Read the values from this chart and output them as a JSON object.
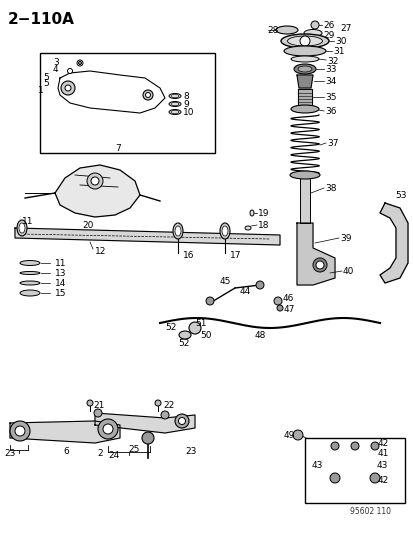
{
  "title": "2−110A",
  "bg_color": "#ffffff",
  "line_color": "#000000",
  "part_numbers": {
    "top_right_assembly": [
      26,
      27,
      28,
      29,
      30,
      31,
      32,
      33,
      34,
      35,
      36,
      37,
      38,
      39,
      40
    ],
    "top_left_box": [
      1,
      3,
      4,
      5,
      7,
      8,
      9,
      10
    ],
    "crossmember": [
      11,
      12,
      13,
      14,
      15,
      16,
      17,
      18,
      19,
      20
    ],
    "lower_arm": [
      2,
      6,
      21,
      22,
      23,
      24,
      25
    ],
    "sway_bar": [
      41,
      42,
      43,
      44,
      45,
      46,
      47,
      48,
      49,
      50,
      51,
      52
    ],
    "right_bracket": [
      53
    ]
  },
  "watermark": "95602 110",
  "fig_width": 4.14,
  "fig_height": 5.33,
  "dpi": 100
}
